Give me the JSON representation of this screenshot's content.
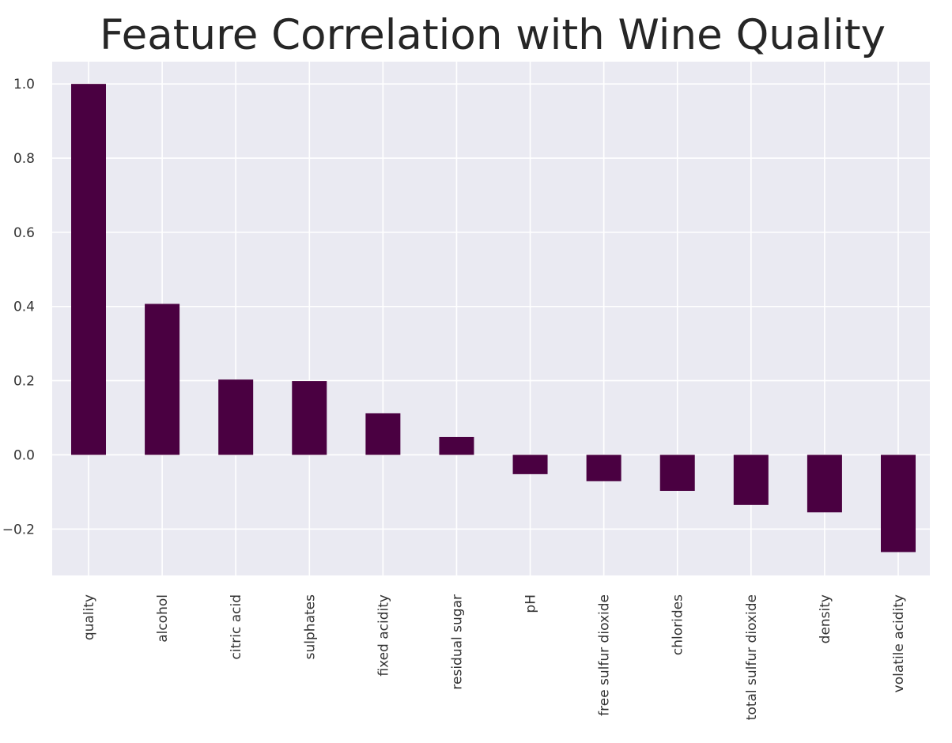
{
  "chart_data": {
    "type": "bar",
    "title": "Feature Correlation with Wine Quality",
    "xlabel": "",
    "ylabel": "",
    "categories": [
      "quality",
      "alcohol",
      "citric acid",
      "sulphates",
      "fixed acidity",
      "residual sugar",
      "pH",
      "free sulfur dioxide",
      "chlorides",
      "total sulfur dioxide",
      "density",
      "volatile acidity"
    ],
    "values": [
      1.0,
      0.407,
      0.203,
      0.199,
      0.112,
      0.048,
      -0.052,
      -0.071,
      -0.097,
      -0.135,
      -0.155,
      -0.262
    ],
    "ylim": [
      -0.325,
      1.06
    ],
    "yticks": [
      -0.2,
      0.0,
      0.2,
      0.4,
      0.6,
      0.8,
      1.0
    ],
    "ytick_labels": [
      "−0.2",
      "0.0",
      "0.2",
      "0.4",
      "0.6",
      "0.8",
      "1.0"
    ],
    "grid": true,
    "colors": {
      "bar": "#4a0041",
      "plot_background": "#eaeaf2",
      "grid": "#ffffff",
      "text": "#333333",
      "title": "#262626"
    }
  }
}
